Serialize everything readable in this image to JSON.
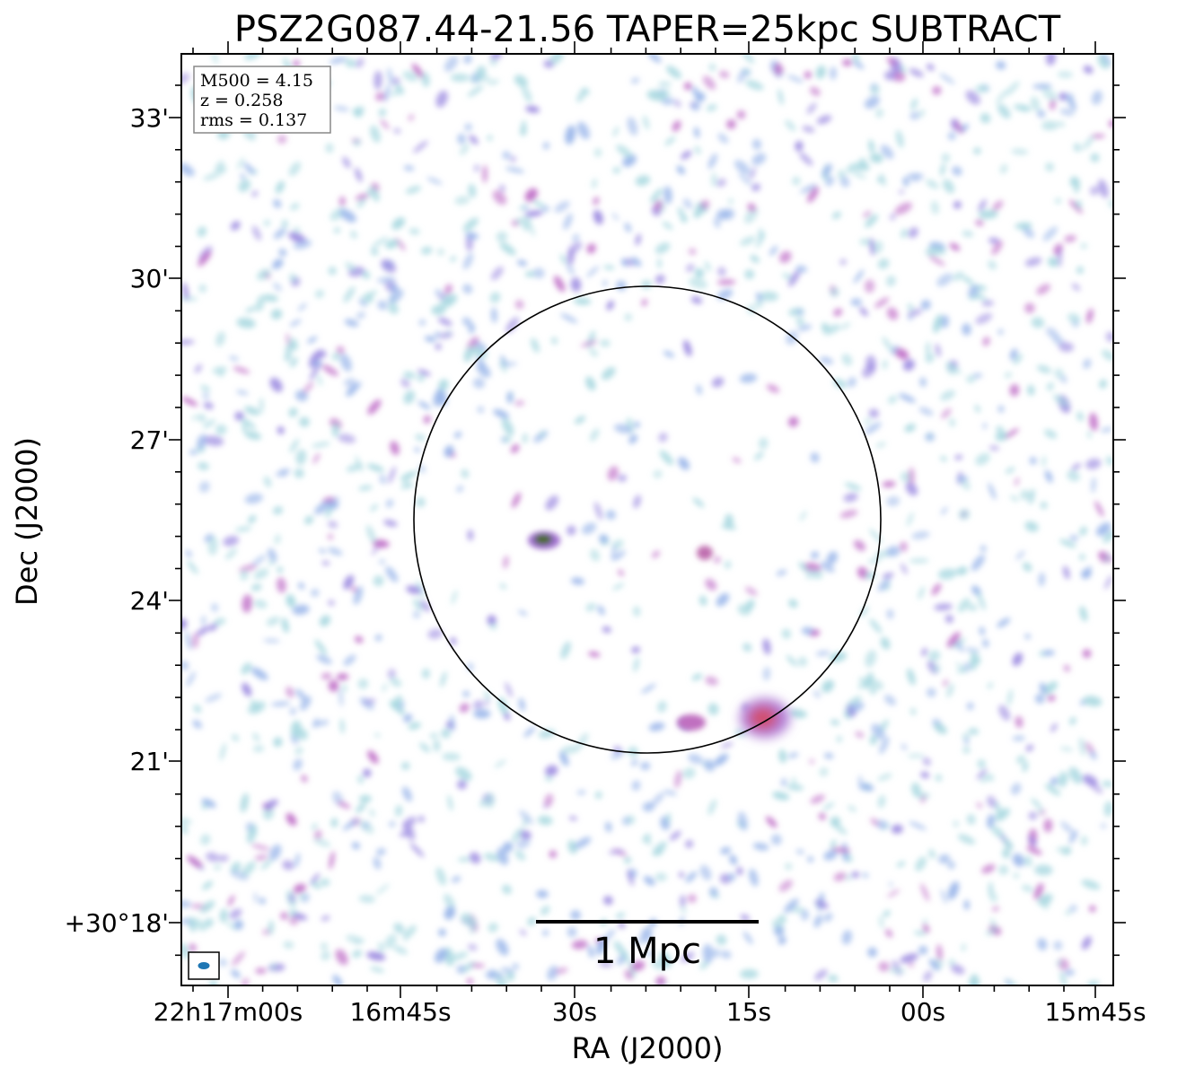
{
  "title": "PSZ2G087.44-21.56 TAPER=25kpc SUBTRACT",
  "info_box": {
    "lines": [
      "M500 = 4.15",
      "z = 0.258",
      "rms = 0.137"
    ]
  },
  "scale_bar": {
    "label": "1 Mpc"
  },
  "axes": {
    "xlabel": "RA (J2000)",
    "ylabel": "Dec (J2000)",
    "xticks": [
      "22h17m00s",
      "16m45s",
      "30s",
      "15s",
      "00s",
      "15m45s"
    ],
    "yticks": [
      "33'",
      "30'",
      "27'",
      "24'",
      "21'",
      "+30°18'"
    ]
  },
  "colors": {
    "noise_cyan": "#a8d8e0",
    "noise_blue": "#9ab6ea",
    "noise_violet": "#9a88e0",
    "source_magenta": "#c070c8",
    "source_red": "#c85060",
    "source_green": "#4a6a20",
    "beam": "#1f77b4",
    "circle": "#000000"
  }
}
